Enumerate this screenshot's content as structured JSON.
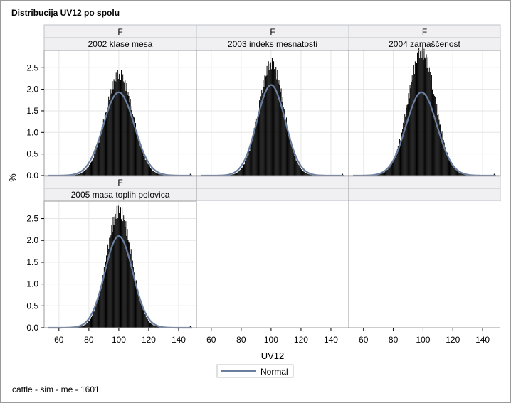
{
  "title": "Distribucija UV12 po spolu",
  "footnote": "cattle - sim - me - 1601",
  "colors": {
    "bars": "#000000",
    "normal_curve": "#6a7fa0",
    "grid": "#e6e6e6",
    "header_bg": "#f0f0f3",
    "header_border": "#bfc2c8"
  },
  "chart_data": {
    "type": "bar",
    "title": "Distribucija UV12 po spolu",
    "xlabel": "UV12",
    "ylabel": "%",
    "xlim": [
      52,
      150
    ],
    "ylim": [
      0,
      2.9
    ],
    "xticks": [
      "60",
      "80",
      "100",
      "120",
      "140"
    ],
    "yticks": [
      "0.0",
      "0.5",
      "1.0",
      "1.5",
      "2.0",
      "2.5"
    ],
    "grid": true,
    "legend": {
      "position": "bottom-center",
      "entries": [
        "Normal"
      ]
    },
    "panels": [
      {
        "sex": "F",
        "name": "2002 klase mesa",
        "mean": 100,
        "sd": 10.3,
        "peak": 2.33,
        "skew": 0.25,
        "normal_peak": 1.93
      },
      {
        "sex": "F",
        "name": "2003 indeks mesnatosti",
        "mean": 100,
        "sd": 9.4,
        "peak": 2.58,
        "skew": 0.2,
        "normal_peak": 2.1
      },
      {
        "sex": "F",
        "name": "2004 zamaščenost",
        "mean": 99,
        "sd": 10.3,
        "peak": 2.86,
        "skew": 0.1,
        "normal_peak": 1.93
      },
      {
        "sex": "F",
        "name": "2005 masa toplih polovica",
        "mean": 100,
        "sd": 9.3,
        "peak": 2.68,
        "skew": 0.2,
        "normal_peak": 2.1
      }
    ]
  }
}
